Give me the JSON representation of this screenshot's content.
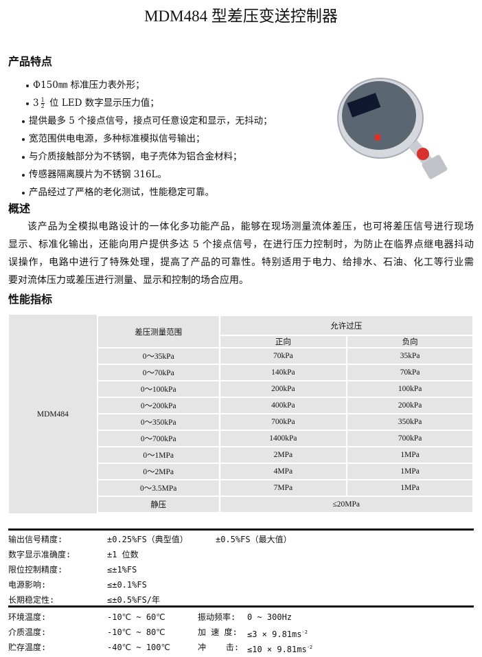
{
  "title": "MDM484 型差压变送控制器",
  "features_heading": "产品特点",
  "features": [
    {
      "text": "Φ150㎜ 标准压力表外形；"
    },
    {
      "prefix": "3",
      "frac_num": "1",
      "frac_den": "2",
      "text": " 位 LED 数字显示压力值；"
    },
    {
      "text": "提供最多 5 个接点信号，接点可任意设定和显示，无抖动；"
    },
    {
      "text": "宽范围供电电源，多种标准模拟信号输出；"
    },
    {
      "text": "与介质接触部分为不锈钢，电子壳体为铝合金材料；"
    },
    {
      "text": "传感器隔离膜片为不锈钢 316L。"
    },
    {
      "text": "产品经过了严格的老化测试，性能稳定可靠。"
    }
  ],
  "overview_heading": "概述",
  "overview_lines": [
    "该产品为全模拟电路设计的一体化多功能产品，能够在现场测量流体差压，也可将差压信号进行现场",
    "显示、标准化输出，还能向用户提供多达 5 个接点信号，在进行压力控制时，为防止在临界点继电器抖动",
    "误操作，电路中进行了特殊处理，提高了产品的可靠性。特别适用于电力、给排水、石油、化工等行业需",
    "要对流体压力或差压进行测量、显示和控制的场合应用。"
  ],
  "perf_heading": "性能指标",
  "table": {
    "model": "MDM484",
    "range_header": "差压测量范围",
    "overpressure_header": "允许过压",
    "forward_header": "正向",
    "reverse_header": "负向",
    "rows": [
      [
        "0～35kPa",
        "70kPa",
        "35kPa"
      ],
      [
        "0～70kPa",
        "140kPa",
        "70kPa"
      ],
      [
        "0～100kPa",
        "200kPa",
        "100kPa"
      ],
      [
        "0～200kPa",
        "400kPa",
        "200kPa"
      ],
      [
        "0～350kPa",
        "700kPa",
        "350kPa"
      ],
      [
        "0～700kPa",
        "1400kPa",
        "700kPa"
      ],
      [
        "0～1MPa",
        "2MPa",
        "1MPa"
      ],
      [
        "0～2MPa",
        "4MPa",
        "1MPa"
      ],
      [
        "0～3.5MPa",
        "7MPa",
        "1MPa"
      ]
    ],
    "static_label": "静压",
    "static_value": "≤20MPa"
  },
  "specs": [
    {
      "label": "输出信号精度:",
      "value": "±0.25%FS（典型值）",
      "value2": "±0.5%FS（最大值）"
    },
    {
      "label": "数字显示准确度:",
      "value": "±1 位数"
    },
    {
      "label": "限位控制精度:",
      "value": "≤±1%FS"
    },
    {
      "label": "电源影响:",
      "value": "≤±0.1%FS"
    },
    {
      "label": "长期稳定性:",
      "value": "≤±0.5%FS/年"
    }
  ],
  "env": [
    {
      "label": "环境温度:",
      "value": "-10℃ ~ 60℃",
      "label2": "振动频率:",
      "value2": "0 ~ 300Hz",
      "sup": ""
    },
    {
      "label": "介质温度:",
      "value": "-10℃ ~ 80℃",
      "label2": "加 速 度:",
      "value2": "≤3 × 9.81ms",
      "sup": "-2"
    },
    {
      "label": "贮存温度:",
      "value": "-40℃ ~ 100℃",
      "label2": "冲    击:",
      "value2": "≤10 × 9.81ms",
      "sup": "-2"
    }
  ],
  "colors": {
    "table_bg": "#e5e5e5",
    "device_face": "#5a6670",
    "device_steel": "#c9ccd0",
    "device_label": "#d8302a"
  }
}
